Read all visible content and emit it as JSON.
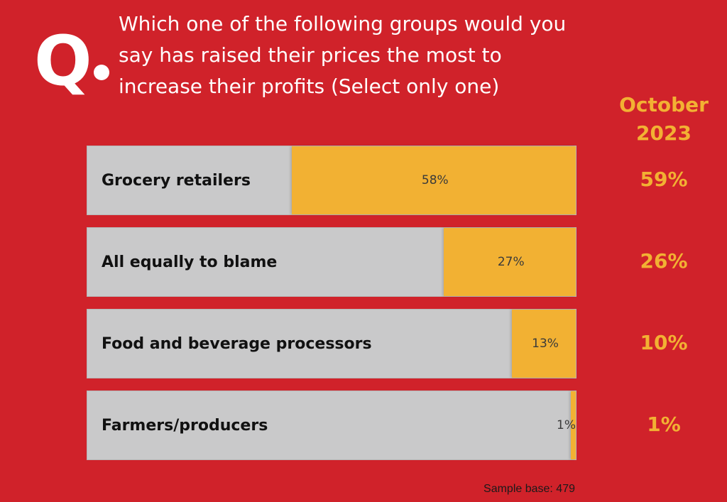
{
  "q_label": "Q.",
  "question": "Which one of the following groups would you say has raised their prices the most to increase their profits  (Select only one)",
  "compare_header": "October 2023",
  "sample_base": "Sample base: 479",
  "colors": {
    "background": "#d0222a",
    "bar_fill": "#f2b133",
    "bar_track": "#c9c9ca",
    "accent_text": "#f2b133"
  },
  "chart_data": {
    "type": "bar",
    "orientation": "horizontal",
    "categories": [
      "Grocery retailers",
      "All equally to blame",
      "Food and beverage processors",
      "Farmers/producers"
    ],
    "values": [
      58,
      27,
      13,
      1
    ],
    "value_labels": [
      "58%",
      "27%",
      "13%",
      "1%"
    ],
    "xlim": [
      0,
      100
    ],
    "comparison": {
      "label": "October 2023",
      "values": [
        59,
        26,
        10,
        1
      ],
      "value_labels": [
        "59%",
        "26%",
        "10%",
        "1%"
      ]
    }
  }
}
